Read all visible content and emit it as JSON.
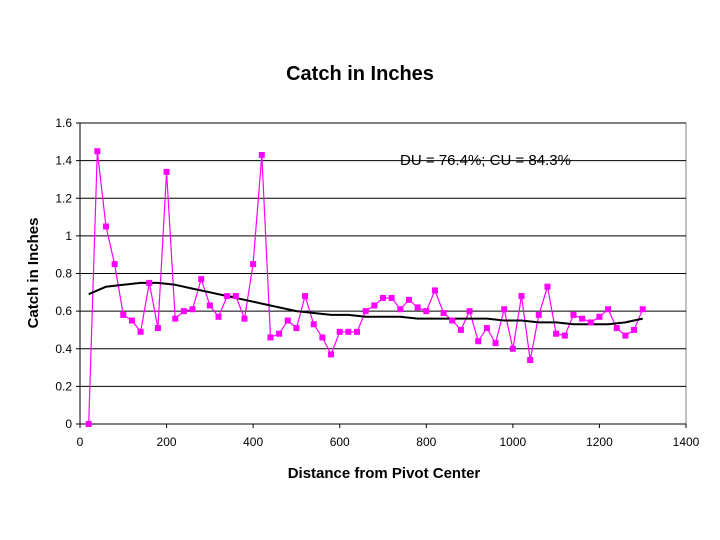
{
  "chart_data": {
    "type": "scatter",
    "title": "Catch in Inches",
    "xlabel": "Distance from Pivot Center",
    "ylabel": "Catch in Inches",
    "xlim": [
      0,
      1400
    ],
    "ylim": [
      0,
      1.6
    ],
    "x_ticks": [
      "0",
      "200",
      "400",
      "600",
      "800",
      "1000",
      "1200",
      "1400"
    ],
    "y_ticks": [
      "0",
      "0.2",
      "0.4",
      "0.6",
      "0.8",
      "1",
      "1.2",
      "1.4",
      "1.6"
    ],
    "grid": "horizontal",
    "annotation": "DU = 76.4%; CU = 84.3%",
    "colors": {
      "series": "#ff00ff",
      "trend": "#000000",
      "grid": "#000000"
    },
    "series": [
      {
        "style": "line-with-square-markers",
        "x": [
          20,
          40,
          60,
          80,
          100,
          120,
          140,
          160,
          180,
          200,
          220,
          240,
          260,
          280,
          300,
          320,
          340,
          360,
          380,
          400,
          420,
          440,
          460,
          480,
          500,
          520,
          540,
          560,
          580,
          600,
          620,
          640,
          660,
          680,
          700,
          720,
          740,
          760,
          780,
          800,
          820,
          840,
          860,
          880,
          900,
          920,
          940,
          960,
          980,
          1000,
          1020,
          1040,
          1060,
          1080,
          1100,
          1120,
          1140,
          1160,
          1180,
          1200,
          1220,
          1240,
          1260,
          1280,
          1300
        ],
        "y": [
          0.0,
          1.45,
          1.05,
          0.85,
          0.58,
          0.55,
          0.49,
          0.75,
          0.51,
          1.34,
          0.56,
          0.6,
          0.61,
          0.77,
          0.63,
          0.57,
          0.68,
          0.68,
          0.56,
          0.85,
          1.43,
          0.46,
          0.48,
          0.55,
          0.51,
          0.68,
          0.53,
          0.46,
          0.37,
          0.49,
          0.49,
          0.49,
          0.6,
          0.63,
          0.67,
          0.67,
          0.61,
          0.66,
          0.62,
          0.6,
          0.71,
          0.59,
          0.55,
          0.5,
          0.6,
          0.44,
          0.51,
          0.43,
          0.61,
          0.4,
          0.68,
          0.34,
          0.58,
          0.73,
          0.48,
          0.47,
          0.58,
          0.56,
          0.54,
          0.57,
          0.61,
          0.51,
          0.47,
          0.5,
          0.61
        ]
      },
      {
        "style": "trend-line",
        "x": [
          20,
          60,
          100,
          140,
          180,
          220,
          260,
          300,
          340,
          380,
          420,
          460,
          500,
          540,
          580,
          620,
          660,
          700,
          740,
          780,
          820,
          860,
          900,
          940,
          980,
          1020,
          1060,
          1100,
          1140,
          1180,
          1220,
          1260,
          1300
        ],
        "y": [
          0.69,
          0.73,
          0.74,
          0.75,
          0.75,
          0.74,
          0.72,
          0.7,
          0.68,
          0.66,
          0.64,
          0.62,
          0.6,
          0.59,
          0.58,
          0.58,
          0.57,
          0.57,
          0.57,
          0.56,
          0.56,
          0.56,
          0.56,
          0.56,
          0.55,
          0.55,
          0.54,
          0.54,
          0.53,
          0.53,
          0.53,
          0.54,
          0.56
        ]
      }
    ]
  }
}
